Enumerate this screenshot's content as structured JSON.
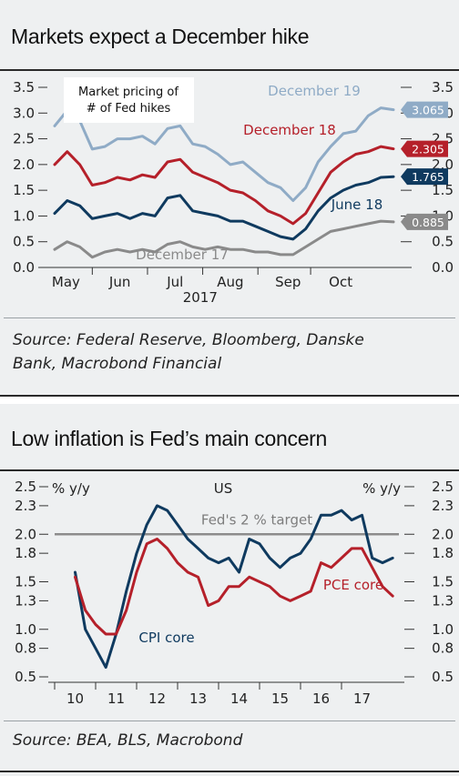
{
  "charts": [
    {
      "title": "Markets expect a December hike",
      "source": [
        "Source: Federal Reserve, Bloomberg, Danske",
        "Bank, Macrobond Financial"
      ],
      "annotation_box": [
        "Market pricing of",
        "# of Fed hikes"
      ],
      "year_label": "2017",
      "y_ticks": [
        "3.5",
        "3.0",
        "2.5",
        "2.0",
        "1.5",
        "1.0",
        "0.5",
        "0.0"
      ],
      "x_ticks": [
        "May",
        "Jun",
        "Jul",
        "Aug",
        "Sep",
        "Oct"
      ],
      "series_labels": [
        "December 19",
        "December 18",
        "June 18",
        "December 17"
      ],
      "end_values": [
        "3.065",
        "2.305",
        "1.765",
        "0.885"
      ]
    },
    {
      "title": "Low inflation is Fed’s main concern",
      "source": [
        "Source: BEA, BLS, Macrobond"
      ],
      "left_unit": "% y/y",
      "right_unit": "% y/y",
      "region": "US",
      "target_label": "Fed's 2 % target",
      "y_ticks": [
        "2.5",
        "2.3",
        "2.0",
        "1.8",
        "1.5",
        "1.3",
        "1.0",
        "0.8",
        "0.5"
      ],
      "x_ticks": [
        "10",
        "11",
        "12",
        "13",
        "14",
        "15",
        "16",
        "17"
      ],
      "series_labels": [
        "PCE core",
        "CPI core"
      ]
    }
  ],
  "chart_data": [
    {
      "type": "line",
      "title": "Markets expect a December hike",
      "xlabel": "2017",
      "ylabel": "",
      "ylim": [
        0,
        3.5
      ],
      "x_axis": "weekly, late Apr 2017 to late Oct 2017",
      "x": [
        "2017-04-24",
        "2017-05-01",
        "2017-05-08",
        "2017-05-15",
        "2017-05-22",
        "2017-05-29",
        "2017-06-05",
        "2017-06-12",
        "2017-06-19",
        "2017-06-26",
        "2017-07-03",
        "2017-07-10",
        "2017-07-17",
        "2017-07-24",
        "2017-07-31",
        "2017-08-07",
        "2017-08-14",
        "2017-08-21",
        "2017-08-28",
        "2017-09-04",
        "2017-09-11",
        "2017-09-18",
        "2017-09-25",
        "2017-10-02",
        "2017-10-09",
        "2017-10-16",
        "2017-10-23",
        "2017-10-30"
      ],
      "series": [
        {
          "name": "December 19",
          "color": "#8fabc6",
          "values": [
            2.75,
            3.05,
            2.85,
            2.3,
            2.35,
            2.5,
            2.5,
            2.55,
            2.4,
            2.7,
            2.75,
            2.4,
            2.35,
            2.2,
            2.0,
            2.05,
            1.85,
            1.65,
            1.55,
            1.3,
            1.55,
            2.05,
            2.35,
            2.6,
            2.65,
            2.95,
            3.1,
            3.065
          ]
        },
        {
          "name": "December 18",
          "color": "#b5202a",
          "values": [
            2.0,
            2.25,
            2.0,
            1.6,
            1.65,
            1.75,
            1.7,
            1.8,
            1.75,
            2.05,
            2.1,
            1.85,
            1.75,
            1.65,
            1.5,
            1.45,
            1.3,
            1.1,
            1.0,
            0.85,
            1.05,
            1.45,
            1.85,
            2.05,
            2.2,
            2.25,
            2.35,
            2.305
          ]
        },
        {
          "name": "June 18",
          "color": "#0f3a5f",
          "values": [
            1.05,
            1.3,
            1.2,
            0.95,
            1.0,
            1.05,
            0.95,
            1.05,
            1.0,
            1.35,
            1.4,
            1.1,
            1.05,
            1.0,
            0.9,
            0.9,
            0.8,
            0.7,
            0.6,
            0.55,
            0.75,
            1.1,
            1.35,
            1.5,
            1.6,
            1.65,
            1.75,
            1.765
          ]
        },
        {
          "name": "December 17",
          "color": "#8a8a8a",
          "values": [
            0.35,
            0.5,
            0.4,
            0.2,
            0.3,
            0.35,
            0.3,
            0.35,
            0.3,
            0.45,
            0.5,
            0.4,
            0.35,
            0.4,
            0.35,
            0.35,
            0.3,
            0.3,
            0.25,
            0.25,
            0.4,
            0.55,
            0.7,
            0.75,
            0.8,
            0.85,
            0.9,
            0.885
          ]
        }
      ],
      "legend": "inline labels"
    },
    {
      "type": "line",
      "title": "Low inflation is Fed’s main concern",
      "xlabel": "",
      "ylabel": "% y/y",
      "ylim": [
        0.5,
        2.5
      ],
      "x": [
        2010.0,
        2010.25,
        2010.5,
        2010.75,
        2011.0,
        2011.25,
        2011.5,
        2011.75,
        2012.0,
        2012.25,
        2012.5,
        2012.75,
        2013.0,
        2013.25,
        2013.5,
        2013.75,
        2014.0,
        2014.25,
        2014.5,
        2014.75,
        2015.0,
        2015.25,
        2015.5,
        2015.75,
        2016.0,
        2016.25,
        2016.5,
        2016.75,
        2017.0,
        2017.25,
        2017.5,
        2017.75
      ],
      "series": [
        {
          "name": "CPI core",
          "color": "#0f3a5f",
          "values": [
            1.6,
            1.0,
            0.8,
            0.6,
            0.95,
            1.4,
            1.8,
            2.1,
            2.3,
            2.25,
            2.1,
            1.95,
            1.85,
            1.75,
            1.7,
            1.75,
            1.6,
            1.95,
            1.9,
            1.75,
            1.65,
            1.75,
            1.8,
            1.95,
            2.2,
            2.2,
            2.25,
            2.15,
            2.2,
            1.75,
            1.7,
            1.75
          ]
        },
        {
          "name": "PCE core",
          "color": "#b5202a",
          "values": [
            1.55,
            1.2,
            1.05,
            0.95,
            0.95,
            1.2,
            1.6,
            1.9,
            1.95,
            1.85,
            1.7,
            1.6,
            1.55,
            1.25,
            1.3,
            1.45,
            1.45,
            1.55,
            1.5,
            1.45,
            1.35,
            1.3,
            1.35,
            1.4,
            1.7,
            1.65,
            1.75,
            1.85,
            1.85,
            1.65,
            1.45,
            1.35
          ]
        },
        {
          "name": "Fed's 2 % target",
          "color": "#8c8c8c",
          "values": [
            2.0,
            2.0,
            2.0,
            2.0,
            2.0,
            2.0,
            2.0,
            2.0,
            2.0,
            2.0,
            2.0,
            2.0,
            2.0,
            2.0,
            2.0,
            2.0,
            2.0,
            2.0,
            2.0,
            2.0,
            2.0,
            2.0,
            2.0,
            2.0,
            2.0,
            2.0,
            2.0,
            2.0,
            2.0,
            2.0,
            2.0,
            2.0
          ]
        }
      ],
      "x_tick_labels": [
        "10",
        "11",
        "12",
        "13",
        "14",
        "15",
        "16",
        "17"
      ],
      "legend": "inline labels"
    }
  ]
}
